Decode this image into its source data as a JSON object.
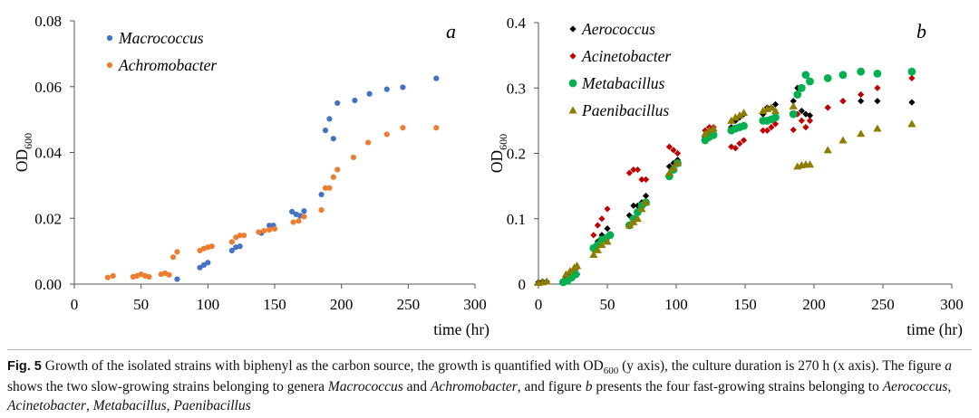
{
  "chart_data": [
    {
      "type": "scatter",
      "panel_letter": "a",
      "xlabel": "time (hr)",
      "ylabel": "OD",
      "ylabel_sub": "600",
      "xlim": [
        0,
        300
      ],
      "ylim": [
        0,
        0.08
      ],
      "x_ticks": [
        0,
        50,
        100,
        150,
        200,
        250,
        300
      ],
      "x_tick_labels": [
        "0",
        "50",
        "100",
        "150",
        "200",
        "250",
        "300"
      ],
      "y_ticks": [
        0,
        0.02,
        0.04,
        0.06,
        0.08
      ],
      "y_tick_labels": [
        "0.00",
        "0.02",
        "0.04",
        "0.06",
        "0.08"
      ],
      "grid": false,
      "legend_position": "top-left",
      "series": [
        {
          "name": "Macrococcus",
          "color": "#4472c4",
          "marker": "circle",
          "x": [
            77,
            94,
            97,
            100,
            118,
            121,
            124,
            140,
            146,
            149,
            163,
            166,
            169,
            172,
            185,
            188,
            191,
            194,
            197,
            210,
            221,
            234,
            246,
            271
          ],
          "y": [
            0.0015,
            0.005,
            0.0058,
            0.0065,
            0.0102,
            0.0112,
            0.0115,
            0.0155,
            0.0178,
            0.0178,
            0.022,
            0.0212,
            0.0208,
            0.0222,
            0.0272,
            0.0467,
            0.0502,
            0.0442,
            0.055,
            0.0558,
            0.0578,
            0.0592,
            0.0598,
            0.0625
          ]
        },
        {
          "name": "Achromobacter",
          "color": "#ed7d31",
          "marker": "circle",
          "x": [
            25,
            29,
            44,
            47,
            50,
            53,
            56,
            65,
            68,
            71,
            74,
            77,
            94,
            97,
            100,
            103,
            118,
            121,
            124,
            127,
            138,
            142,
            146,
            150,
            164,
            168,
            172,
            185,
            188,
            191,
            194,
            197,
            209,
            220,
            234,
            246,
            271
          ],
          "y": [
            0.002,
            0.0025,
            0.0022,
            0.0025,
            0.003,
            0.0025,
            0.0022,
            0.003,
            0.0033,
            0.0028,
            0.0082,
            0.0098,
            0.0102,
            0.0108,
            0.0112,
            0.0115,
            0.0128,
            0.0142,
            0.0148,
            0.0148,
            0.0158,
            0.0162,
            0.0165,
            0.0168,
            0.0188,
            0.0192,
            0.0205,
            0.0225,
            0.0292,
            0.0292,
            0.0325,
            0.0348,
            0.0385,
            0.043,
            0.0455,
            0.0475,
            0.0475
          ]
        }
      ]
    },
    {
      "type": "scatter",
      "panel_letter": "b",
      "xlabel": "time (hr)",
      "ylabel": "OD",
      "ylabel_sub": "600",
      "xlim": [
        0,
        300
      ],
      "ylim": [
        0,
        0.4
      ],
      "x_ticks": [
        0,
        50,
        100,
        150,
        200,
        250,
        300
      ],
      "x_tick_labels": [
        "0",
        "50",
        "100",
        "150",
        "200",
        "250",
        "300"
      ],
      "y_ticks": [
        0,
        0.1,
        0.2,
        0.3,
        0.4
      ],
      "y_tick_labels": [
        "0",
        "0.1",
        "0.2",
        "0.3",
        "0.4"
      ],
      "grid": false,
      "legend_position": "top-left",
      "series": [
        {
          "name": "Aerococcus",
          "color": "#000000",
          "marker": "diamond",
          "x": [
            0,
            3,
            6,
            20,
            23,
            26,
            28,
            40,
            43,
            46,
            50,
            66,
            69,
            72,
            75,
            78,
            95,
            98,
            101,
            121,
            124,
            127,
            140,
            143,
            146,
            149,
            163,
            166,
            169,
            172,
            185,
            188,
            191,
            194,
            197,
            210,
            221,
            234,
            246,
            271
          ],
          "y": [
            0.003,
            0.004,
            0.004,
            0.008,
            0.01,
            0.012,
            0.015,
            0.055,
            0.065,
            0.075,
            0.085,
            0.105,
            0.12,
            0.12,
            0.125,
            0.135,
            0.18,
            0.185,
            0.19,
            0.225,
            0.23,
            0.235,
            0.24,
            0.25,
            0.255,
            0.26,
            0.26,
            0.27,
            0.27,
            0.275,
            0.28,
            0.3,
            0.265,
            0.26,
            0.258,
            0.27,
            0.28,
            0.28,
            0.28,
            0.278
          ]
        },
        {
          "name": "Acinetobacter",
          "color": "#c00000",
          "marker": "diamond",
          "x": [
            20,
            23,
            26,
            28,
            40,
            43,
            46,
            50,
            66,
            69,
            72,
            75,
            78,
            95,
            98,
            101,
            121,
            124,
            127,
            140,
            143,
            146,
            149,
            163,
            166,
            169,
            172,
            185,
            188,
            191,
            194,
            197,
            210,
            221,
            234,
            246,
            271
          ],
          "y": [
            0.01,
            0.015,
            0.02,
            0.025,
            0.075,
            0.09,
            0.1,
            0.115,
            0.17,
            0.175,
            0.175,
            0.16,
            0.16,
            0.21,
            0.205,
            0.2,
            0.235,
            0.24,
            0.24,
            0.21,
            0.208,
            0.215,
            0.22,
            0.235,
            0.235,
            0.24,
            0.245,
            0.236,
            0.26,
            0.25,
            0.24,
            0.25,
            0.27,
            0.28,
            0.29,
            0.3,
            0.315
          ]
        },
        {
          "name": "Metabacillus",
          "color": "#00b050",
          "marker": "circle",
          "x": [
            18,
            21,
            24,
            27,
            40,
            43,
            46,
            49,
            52,
            66,
            69,
            72,
            75,
            78,
            95,
            98,
            101,
            121,
            124,
            127,
            140,
            143,
            146,
            149,
            163,
            166,
            169,
            172,
            185,
            188,
            191,
            194,
            197,
            210,
            221,
            234,
            246,
            271
          ],
          "y": [
            0.003,
            0.005,
            0.01,
            0.015,
            0.055,
            0.06,
            0.068,
            0.07,
            0.075,
            0.09,
            0.1,
            0.11,
            0.12,
            0.125,
            0.165,
            0.175,
            0.185,
            0.22,
            0.225,
            0.228,
            0.235,
            0.238,
            0.24,
            0.242,
            0.25,
            0.25,
            0.252,
            0.255,
            0.26,
            0.29,
            0.3,
            0.32,
            0.31,
            0.315,
            0.32,
            0.325,
            0.322,
            0.325
          ]
        },
        {
          "name": "Paenibacillus",
          "color": "#8b7d00",
          "marker": "triangle",
          "x": [
            0,
            3,
            6,
            20,
            23,
            26,
            28,
            40,
            43,
            46,
            50,
            66,
            69,
            72,
            75,
            78,
            95,
            98,
            101,
            121,
            124,
            127,
            140,
            143,
            146,
            149,
            163,
            166,
            169,
            172,
            185,
            188,
            191,
            194,
            197,
            210,
            221,
            234,
            246,
            271
          ],
          "y": [
            0.002,
            0.003,
            0.004,
            0.015,
            0.02,
            0.025,
            0.028,
            0.045,
            0.052,
            0.06,
            0.065,
            0.09,
            0.095,
            0.1,
            0.115,
            0.125,
            0.17,
            0.178,
            0.185,
            0.23,
            0.235,
            0.238,
            0.25,
            0.255,
            0.258,
            0.262,
            0.265,
            0.268,
            0.27,
            0.265,
            0.272,
            0.18,
            0.182,
            0.183,
            0.183,
            0.205,
            0.22,
            0.23,
            0.238,
            0.245
          ]
        }
      ]
    }
  ],
  "caption": {
    "label": "Fig. 5",
    "part1": "  Growth of the isolated strains with biphenyl as the carbon source, the growth is quantified with OD",
    "od_sub": "600",
    "part2": " (y axis), the culture duration is 270 h (x axis). The figure ",
    "a": "a",
    "part3": " shows the two slow-growing strains belonging to genera ",
    "genus1": "Macrococcus",
    "and": " and ",
    "genus2": "Achromobacter",
    "part4": ", and figure ",
    "b": "b",
    "part5": " presents the four fast-growing strains belonging to ",
    "genus3": "Aerococcus",
    "sep": ", ",
    "genus4": "Acinetobacter",
    "genus5": "Metabacillus",
    "genus6": "Paenibacillus"
  }
}
